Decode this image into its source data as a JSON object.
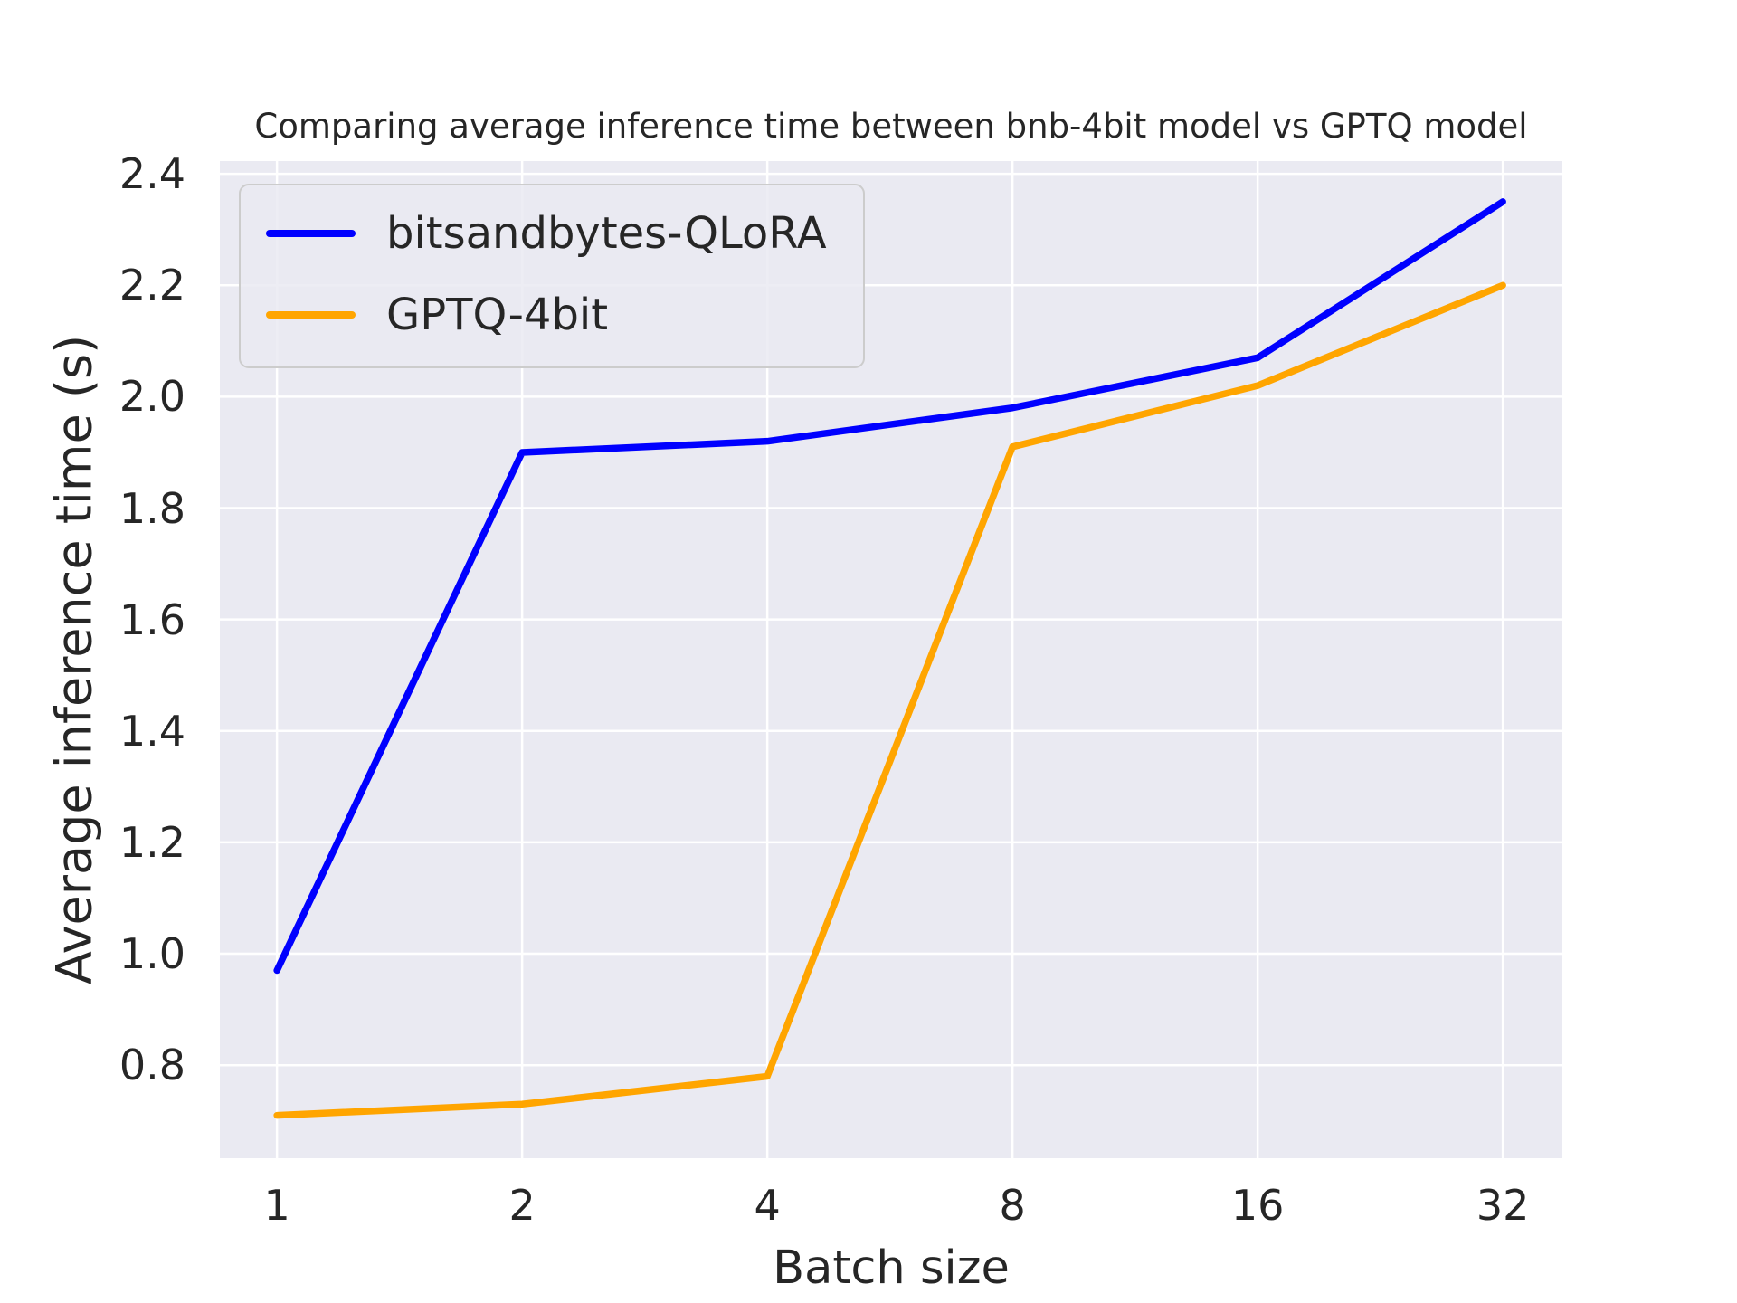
{
  "chart_data": {
    "type": "line",
    "title": "Comparing average inference time between bnb-4bit model vs GPTQ model",
    "xlabel": "Batch size",
    "ylabel": "Average inference time (s)",
    "categories": [
      1,
      2,
      4,
      8,
      16,
      32
    ],
    "x_tick_labels": [
      "1",
      "2",
      "4",
      "8",
      "16",
      "32"
    ],
    "y_ticks": [
      2.4,
      2.2,
      2.0,
      1.8,
      1.6,
      1.4,
      1.2,
      1.0,
      0.8
    ],
    "y_tick_labels": [
      "2.4",
      "2.2",
      "2.0",
      "1.8",
      "1.6",
      "1.4",
      "1.2",
      "1.0",
      "0.8"
    ],
    "ylim": [
      0.633,
      2.423
    ],
    "xlim_index": [
      -0.233,
      5.243
    ],
    "grid": true,
    "legend_position": "upper left",
    "series": [
      {
        "name": "bitsandbytes-QLoRA",
        "color": "#0000ff",
        "values": [
          0.97,
          1.9,
          1.92,
          1.98,
          2.07,
          2.35
        ]
      },
      {
        "name": "GPTQ-4bit",
        "color": "#ffa500",
        "values": [
          0.71,
          0.73,
          0.78,
          1.91,
          2.02,
          2.2
        ]
      }
    ],
    "colors": {
      "axes_background": "#eaeaf2",
      "grid": "#ffffff",
      "text": "#262626",
      "legend_border": "#cccccc"
    }
  }
}
